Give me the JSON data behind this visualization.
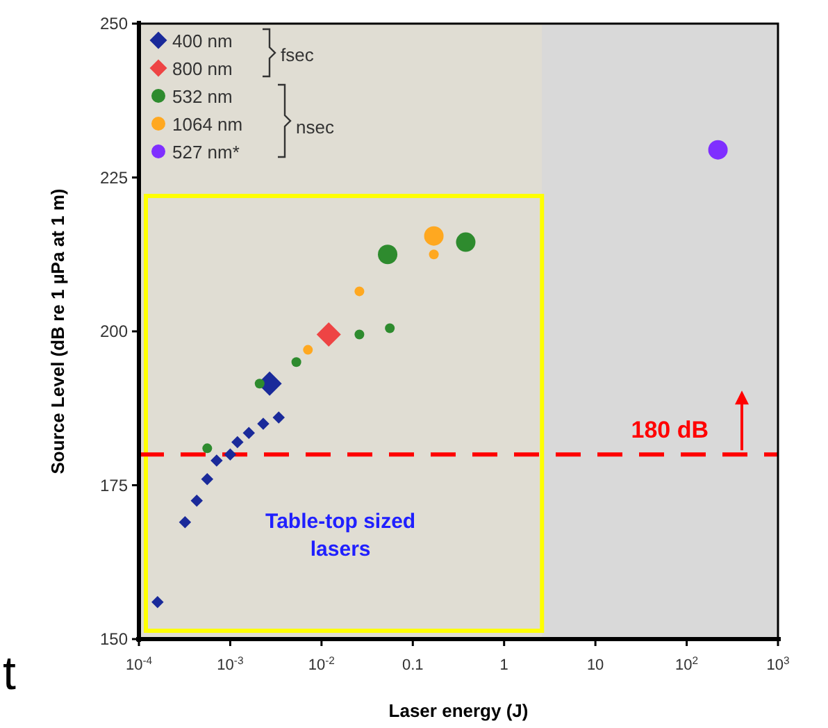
{
  "chart_data": {
    "type": "scatter",
    "xlabel": "Laser energy (J)",
    "ylabel": "Source Level (dB re 1 µPa at 1 m)",
    "log": "x",
    "xlim": [
      0.0001,
      1000
    ],
    "xticks": [
      {
        "value": 0.0001,
        "label": "10$^{-4}$"
      },
      {
        "value": 0.001,
        "label": "10$^{-3}$"
      },
      {
        "value": 0.01,
        "label": "10$^{-2}$"
      },
      0.1,
      1,
      10,
      {
        "value": 100,
        "label": "10$^{2}$"
      },
      {
        "value": 1000,
        "label": "10$^{3}$"
      }
    ],
    "ylim": [
      150,
      250
    ],
    "yticks": [
      150,
      175,
      200,
      225,
      250
    ],
    "grid": false,
    "legend": "top left",
    "series": [
      {
        "name": "400 nm",
        "type": "bubble",
        "marker": "diamond",
        "color": "#1a2a9a",
        "x": [
          0.00016,
          0.00032,
          0.00043,
          0.00056,
          0.00071,
          0.001,
          0.0012,
          0.0016,
          0.0023,
          0.0034,
          0.0027
        ],
        "values": [
          156,
          169,
          172.5,
          176,
          179,
          180,
          182,
          183.5,
          185,
          186,
          191.5
        ],
        "sizes": [
          0.25,
          0.25,
          0.25,
          0.25,
          0.25,
          0.25,
          0.25,
          0.25,
          0.25,
          0.25,
          1
        ]
      },
      {
        "name": "800 nm",
        "type": "bubble",
        "marker": "diamond",
        "color": "#ee4444",
        "x": [
          0.012
        ],
        "values": [
          199.5
        ],
        "sizes": [
          1
        ]
      },
      {
        "name": "532 nm",
        "type": "bubble",
        "marker": "circle",
        "color": "#2e8b2e",
        "x": [
          0.00056,
          0.0021,
          0.0053,
          0.026,
          0.056,
          0.053,
          0.38
        ],
        "values": [
          181,
          191.5,
          195,
          199.5,
          200.5,
          212.5,
          214.5
        ],
        "sizes": [
          0.25,
          0.25,
          0.25,
          0.25,
          0.25,
          1,
          1
        ]
      },
      {
        "name": "1064 nm",
        "type": "bubble",
        "marker": "circle",
        "color": "#ffa820",
        "x": [
          0.0071,
          0.026,
          0.17,
          0.17
        ],
        "values": [
          197,
          206.5,
          212.5,
          215.5
        ],
        "sizes": [
          0.25,
          0.25,
          0.25,
          1
        ]
      },
      {
        "name": "527 nm*",
        "type": "bubble",
        "marker": "circle",
        "color": "#7f2fff",
        "x": [
          220
        ],
        "values": [
          229.5
        ],
        "sizes": [
          1
        ]
      }
    ],
    "ref_lines": [
      {
        "axis": "y",
        "value": 180,
        "label": "180 dB",
        "color": "#ff0000",
        "line_style": "dashed"
      }
    ],
    "bands": [
      {
        "axis": "x",
        "from": 0.0001,
        "to": 2.6,
        "label": "Table-top sized lasers",
        "color": "#e0ddd3"
      }
    ],
    "annotations": [
      "fsec",
      "nsec",
      "t"
    ]
  }
}
